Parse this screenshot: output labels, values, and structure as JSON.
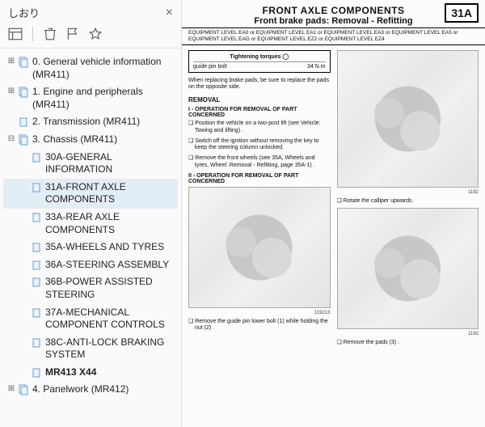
{
  "sidebar": {
    "title": "しおり",
    "toolbar": {
      "outline": "outline",
      "trash": "trash",
      "flag": "flag",
      "star": "star"
    },
    "items": [
      {
        "label": "0. General vehicle information (MR411)",
        "depth": 0,
        "icon": "pages",
        "toggle": "+",
        "bold": false
      },
      {
        "label": "1. Engine and peripherals (MR411)",
        "depth": 0,
        "icon": "pages",
        "toggle": "+",
        "bold": false
      },
      {
        "label": "2. Transmission (MR411)",
        "depth": 0,
        "icon": "page",
        "toggle": "",
        "bold": false
      },
      {
        "label": "3. Chassis (MR411)",
        "depth": 0,
        "icon": "pages",
        "toggle": "-",
        "bold": false
      },
      {
        "label": "30A-GENERAL INFORMATION",
        "depth": 1,
        "icon": "page",
        "toggle": "",
        "bold": false
      },
      {
        "label": "31A-FRONT AXLE COMPONENTS",
        "depth": 1,
        "icon": "page",
        "toggle": "",
        "bold": false,
        "selected": true
      },
      {
        "label": "33A-REAR AXLE COMPONENTS",
        "depth": 1,
        "icon": "page",
        "toggle": "",
        "bold": false
      },
      {
        "label": "35A-WHEELS AND TYRES",
        "depth": 1,
        "icon": "page",
        "toggle": "",
        "bold": false
      },
      {
        "label": "36A-STEERING ASSEMBLY",
        "depth": 1,
        "icon": "page",
        "toggle": "",
        "bold": false
      },
      {
        "label": "36B-POWER ASSISTED STEERING",
        "depth": 1,
        "icon": "page",
        "toggle": "",
        "bold": false
      },
      {
        "label": "37A-MECHANICAL COMPONENT CONTROLS",
        "depth": 1,
        "icon": "page",
        "toggle": "",
        "bold": false
      },
      {
        "label": "38C-ANTI-LOCK BRAKING SYSTEM",
        "depth": 1,
        "icon": "page",
        "toggle": "",
        "bold": false
      },
      {
        "label": "MR413 X44",
        "depth": 1,
        "icon": "page",
        "toggle": "",
        "bold": true
      },
      {
        "label": "4. Panelwork (MR412)",
        "depth": 0,
        "icon": "pages",
        "toggle": "+",
        "bold": false
      }
    ]
  },
  "doc": {
    "title1": "FRONT AXLE COMPONENTS",
    "title2": "Front brake pads: Removal - Refitting",
    "code": "31A",
    "equip": "EQUIPMENT LEVEL EA0 or EQUIPMENT LEVEL EA1 or EQUIPMENT LEVEL EA3 or EQUIPMENT LEVEL EA5 or EQUIPMENT LEVEL EAG or EQUIPMENT LEVEL EZ2 or EQUIPMENT LEVEL EZ4",
    "tq_title": "Tightening torques ◯",
    "tq_item": "guide pin bolt",
    "tq_val": "34 N.m",
    "note": "When replacing brake pads, be sure to replace the pads on the opposite side.",
    "removal_h": "REMOVAL",
    "op1_h": "I - OPERATION FOR REMOVAL OF PART CONCERNED",
    "b1": "Position the vehicle on a two-post lift (see Vehicle: Towing and lifting) .",
    "b2": "Switch off the ignition without removing the key to keep the steering column unlocked.",
    "b3": "Remove the front wheels (see 35A, Wheels and tyres, Wheel: Removal - Refitting, page 35A-1) .",
    "op2_h": "II - OPERATION FOR REMOVAL OF PART CONCERNED",
    "figcap1": "119213",
    "b4": "Remove the guide pin lower bolt (1) while holding the nut (2) .",
    "figcap2": "1192",
    "b5": "Rotate the calliper upwards.",
    "figcap3": "1192",
    "b6": "Remove the pads (3) ."
  },
  "colors": {
    "sidebar_bg": "#fafafa",
    "selected_bg": "#e3edf6",
    "border": "#dddddd",
    "text": "#222222"
  }
}
